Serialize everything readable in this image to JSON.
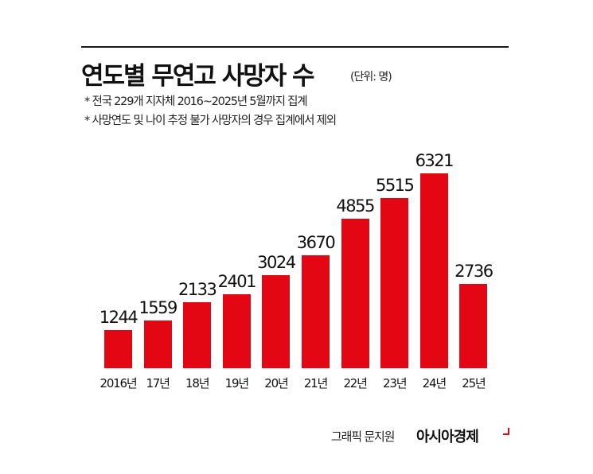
{
  "header": {
    "title": "연도별 무연고 사망자 수",
    "unit": "(단위: 명)",
    "notes": [
      "* 전국 229개 지자체 2016~2025년 5월까지 집계",
      "* 사망연도 및 나이 추정 불가 사망자의 경우 집계에서 제외"
    ]
  },
  "footer": {
    "credit": "그래픽 문지원",
    "brand": "아시아경제"
  },
  "colors": {
    "bar": "#e30613",
    "text": "#111111",
    "rule": "#1a1a1a"
  },
  "chart_data": {
    "type": "bar",
    "title": "연도별 무연고 사망자 수",
    "subtitle": "(단위: 명)",
    "annotations": [
      "* 전국 229개 지자체 2016~2025년 5월까지 집계",
      "* 사망연도 및 나이 추정 불가 사망자의 경우 집계에서 제외"
    ],
    "categories": [
      "2016년",
      "17년",
      "18년",
      "19년",
      "20년",
      "21년",
      "22년",
      "23년",
      "24년",
      "25년"
    ],
    "values": [
      1244,
      1559,
      2133,
      2401,
      3024,
      3670,
      4855,
      5515,
      6321,
      2736
    ],
    "xlabel": "",
    "ylabel": "",
    "ylim": [
      0,
      6321
    ],
    "grid": false,
    "legend": "none",
    "data_labels": true
  }
}
